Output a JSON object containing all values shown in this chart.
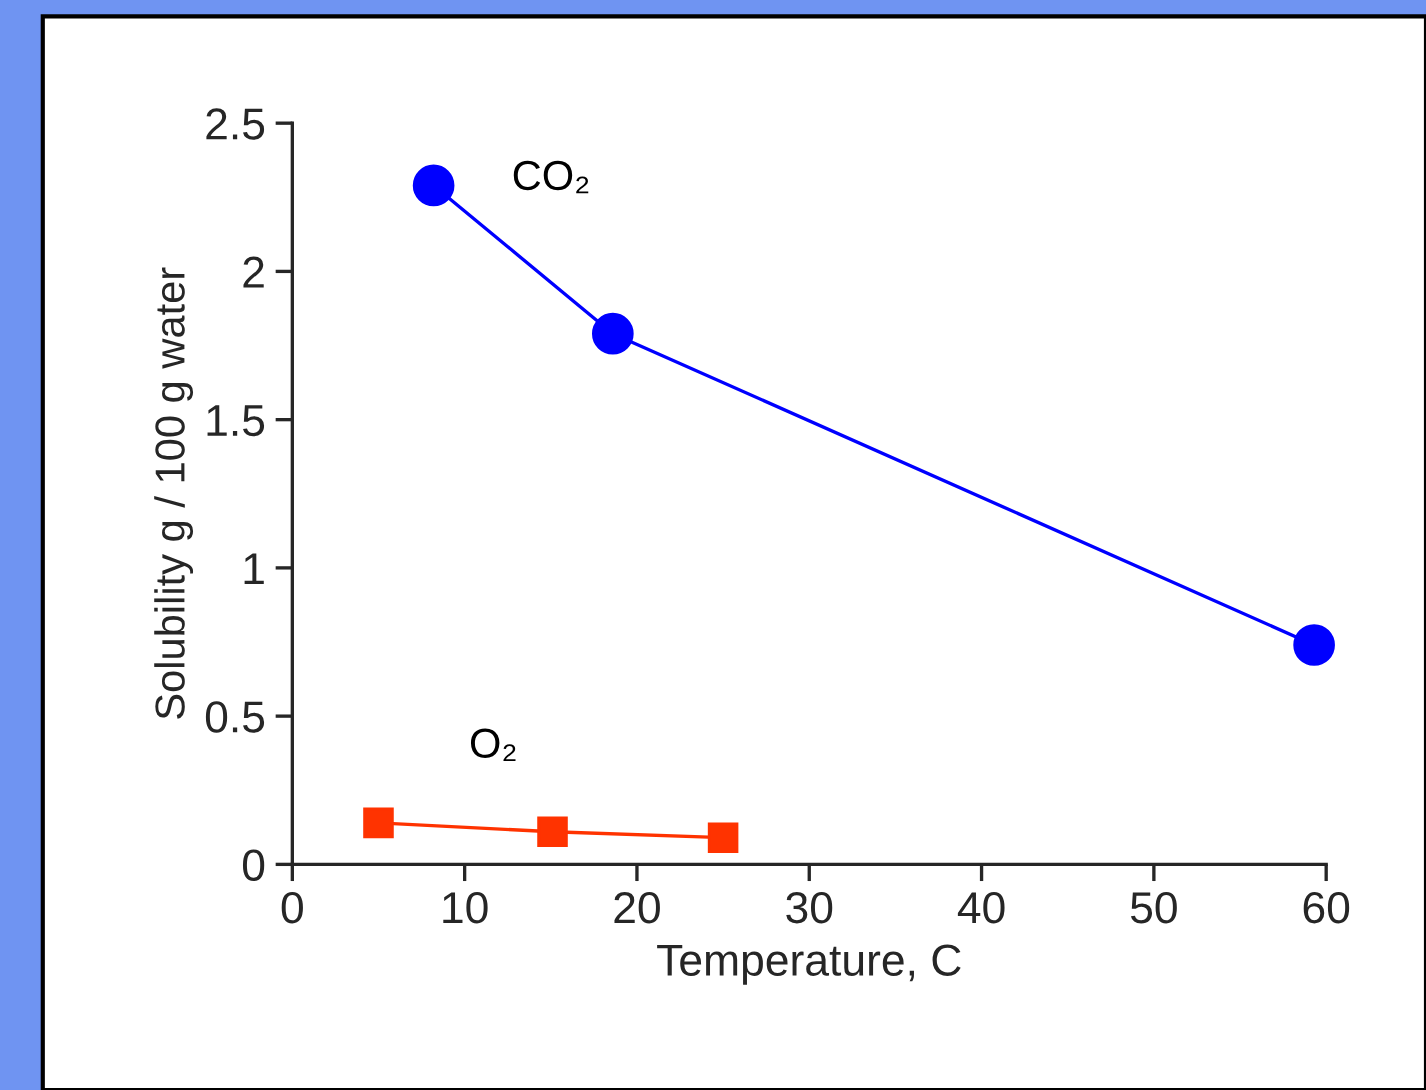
{
  "chart_data": {
    "type": "line",
    "xlabel": "Temperature, C",
    "ylabel": "Solubility g / 100 g water",
    "series": [
      {
        "name": "CO₂",
        "color": "#0000ff",
        "marker": "circle",
        "x": [
          8.2,
          18.6,
          59.3
        ],
        "values": [
          2.29,
          1.79,
          0.74
        ]
      },
      {
        "name": "O₂",
        "color": "#ff3300",
        "marker": "square",
        "x": [
          5,
          15.1,
          25
        ],
        "values": [
          0.14,
          0.11,
          0.09
        ]
      }
    ],
    "xlim": [
      0,
      60
    ],
    "ylim": [
      0,
      2.5
    ],
    "xticks": [
      0,
      10,
      20,
      30,
      40,
      50,
      60
    ],
    "yticks": [
      0,
      0.5,
      1,
      1.5,
      2,
      2.5
    ],
    "grid": false,
    "legend": false,
    "line_style": "solid"
  }
}
